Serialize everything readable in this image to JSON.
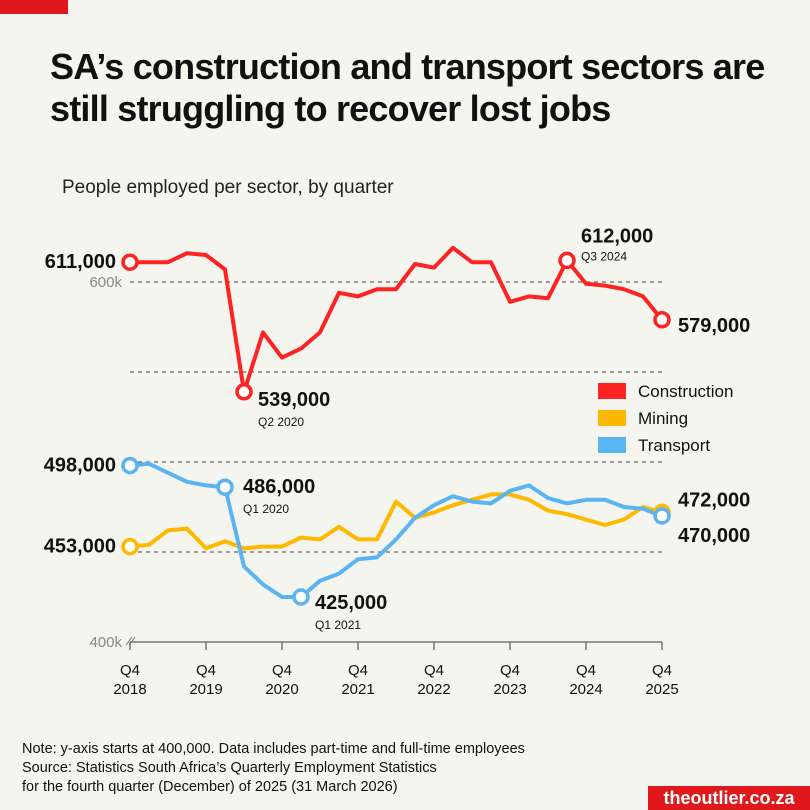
{
  "title": "SA’s construction and transport sectors are still struggling to recover lost jobs",
  "subtitle": "People employed per sector, by quarter",
  "footer": {
    "note": "Note: y-axis starts at 400,000. Data includes part-time and full-time employees",
    "source_line1": "Source: Statistics South Africa’s Quarterly Employment Statistics",
    "source_line2": "for the fourth quarter (December) of 2025 (31 March 2026)"
  },
  "brand": "theoutlier.co.za",
  "colors": {
    "accent": "#e0181b",
    "construction": "#ff2222",
    "mining": "#ffb800",
    "transport": "#5ab4f2",
    "background": "#f5f5f0"
  },
  "chart_data": {
    "type": "line",
    "x_start": "Q4 2018",
    "x_end": "Q4 2025",
    "x_ticks": [
      {
        "q": "Q4",
        "y": "2018"
      },
      {
        "q": "Q4",
        "y": "2019"
      },
      {
        "q": "Q4",
        "y": "2020"
      },
      {
        "q": "Q4",
        "y": "2021"
      },
      {
        "q": "Q4",
        "y": "2022"
      },
      {
        "q": "Q4",
        "y": "2023"
      },
      {
        "q": "Q4",
        "y": "2024"
      },
      {
        "q": "Q4",
        "y": "2025"
      }
    ],
    "ylim": [
      400000,
      615000
    ],
    "y_tick_labels": [
      {
        "value": 600000,
        "label": "600k"
      },
      {
        "value": 400000,
        "label": "400k"
      }
    ],
    "gridlines": [
      600000,
      550000,
      500000,
      450000
    ],
    "legend_position": "right",
    "series": [
      {
        "name": "Construction",
        "color": "#ff2222",
        "values": [
          611000,
          611000,
          611000,
          616000,
          615000,
          607000,
          539000,
          572000,
          558000,
          563000,
          572000,
          594000,
          592000,
          596000,
          596000,
          610000,
          608000,
          619000,
          611000,
          611000,
          589000,
          592000,
          591000,
          612000,
          599000,
          598000,
          596000,
          592000,
          579000
        ]
      },
      {
        "name": "Mining",
        "color": "#ffb800",
        "values": [
          453000,
          454000,
          462000,
          463000,
          452000,
          456000,
          452000,
          453000,
          453000,
          458000,
          457000,
          464000,
          457000,
          457000,
          478000,
          469000,
          472000,
          476000,
          479000,
          482000,
          482000,
          479000,
          473000,
          471000,
          468000,
          465000,
          468000,
          475000,
          472000
        ]
      },
      {
        "name": "Transport",
        "color": "#5ab4f2",
        "values": [
          498000,
          499000,
          494000,
          489000,
          487000,
          486000,
          442000,
          432000,
          425000,
          425000,
          434000,
          438000,
          446000,
          447000,
          457000,
          469000,
          476000,
          481000,
          478000,
          477000,
          484000,
          487000,
          480000,
          477000,
          479000,
          479000,
          475000,
          474000,
          470000
        ]
      }
    ],
    "annotations": [
      {
        "series": 0,
        "index": 0,
        "value": "611,000",
        "period": ""
      },
      {
        "series": 0,
        "index": 6,
        "value": "539,000",
        "period": "Q2 2020"
      },
      {
        "series": 0,
        "index": 23,
        "value": "612,000",
        "period": "Q3 2024"
      },
      {
        "series": 0,
        "index": 28,
        "value": "579,000",
        "period": ""
      },
      {
        "series": 1,
        "index": 0,
        "value": "453,000",
        "period": ""
      },
      {
        "series": 1,
        "index": 28,
        "value": "472,000",
        "period": ""
      },
      {
        "series": 2,
        "index": 0,
        "value": "498,000",
        "period": ""
      },
      {
        "series": 2,
        "index": 5,
        "value": "486,000",
        "period": "Q1 2020"
      },
      {
        "series": 2,
        "index": 9,
        "value": "425,000",
        "period": "Q1 2021"
      },
      {
        "series": 2,
        "index": 28,
        "value": "470,000",
        "period": ""
      }
    ]
  }
}
